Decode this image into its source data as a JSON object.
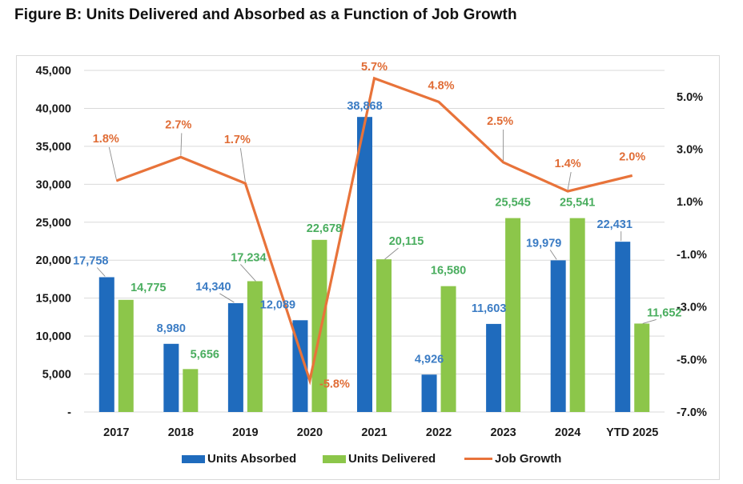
{
  "figure": {
    "title": "Figure B:  Units Delivered and Absorbed as a Function of Job Growth"
  },
  "colors": {
    "absorbed": "#1f6bbd",
    "delivered": "#8cc64a",
    "job_growth": "#e8733a",
    "absorbed_label": "#3b7cc4",
    "delivered_label": "#49ad5e",
    "job_growth_label": "#e06c35",
    "gridline": "#d9d9d9",
    "leader": "#8c8c8c"
  },
  "chart_data": {
    "type": "bar",
    "title": "Figure B:  Units Delivered and Absorbed as a Function of Job Growth",
    "xlabel": "",
    "ylabel": "",
    "y2label": "",
    "categories": [
      "2017",
      "2018",
      "2019",
      "2020",
      "2021",
      "2022",
      "2023",
      "2024",
      "YTD 2025"
    ],
    "series": [
      {
        "name": "Units Absorbed",
        "type": "bar",
        "axis": "left",
        "values": [
          17758,
          8980,
          14340,
          12089,
          38868,
          4926,
          11603,
          19979,
          22431
        ],
        "labels": [
          "17,758",
          "8,980",
          "14,340",
          "12,089",
          "38,868",
          "4,926",
          "11,603",
          "19,979",
          "22,431"
        ]
      },
      {
        "name": "Units Delivered",
        "type": "bar",
        "axis": "left",
        "values": [
          14775,
          5656,
          17234,
          22678,
          20115,
          16580,
          25545,
          25541,
          11652
        ],
        "labels": [
          "14,775",
          "5,656",
          "17,234",
          "22,678",
          "20,115",
          "16,580",
          "25,545",
          "25,541",
          "11,652"
        ]
      },
      {
        "name": "Job Growth",
        "type": "line",
        "axis": "right",
        "unit": "%",
        "values": [
          1.8,
          2.7,
          1.7,
          -5.8,
          5.7,
          4.8,
          2.5,
          1.4,
          2.0
        ],
        "labels": [
          "1.8%",
          "2.7%",
          "1.7%",
          "-5.8%",
          "5.7%",
          "4.8%",
          "2.5%",
          "1.4%",
          "2.0%"
        ]
      }
    ],
    "y_axis": {
      "range": [
        0,
        45000
      ],
      "ticks": [
        0,
        5000,
        10000,
        15000,
        20000,
        25000,
        30000,
        35000,
        40000,
        45000
      ],
      "tick_labels": [
        "-",
        "5,000",
        "10,000",
        "15,000",
        "20,000",
        "25,000",
        "30,000",
        "35,000",
        "40,000",
        "45,000"
      ]
    },
    "y2_axis": {
      "range": [
        -7.0,
        6.0
      ],
      "ticks": [
        -7.0,
        -5.0,
        -3.0,
        -1.0,
        1.0,
        3.0,
        5.0
      ],
      "tick_labels": [
        "-7.0%",
        "-5.0%",
        "-3.0%",
        "-1.0%",
        "1.0%",
        "3.0%",
        "5.0%"
      ]
    },
    "grid": true,
    "legend": {
      "position": "bottom",
      "entries": [
        "Units Absorbed",
        "Units Delivered",
        "Job Growth"
      ]
    }
  }
}
